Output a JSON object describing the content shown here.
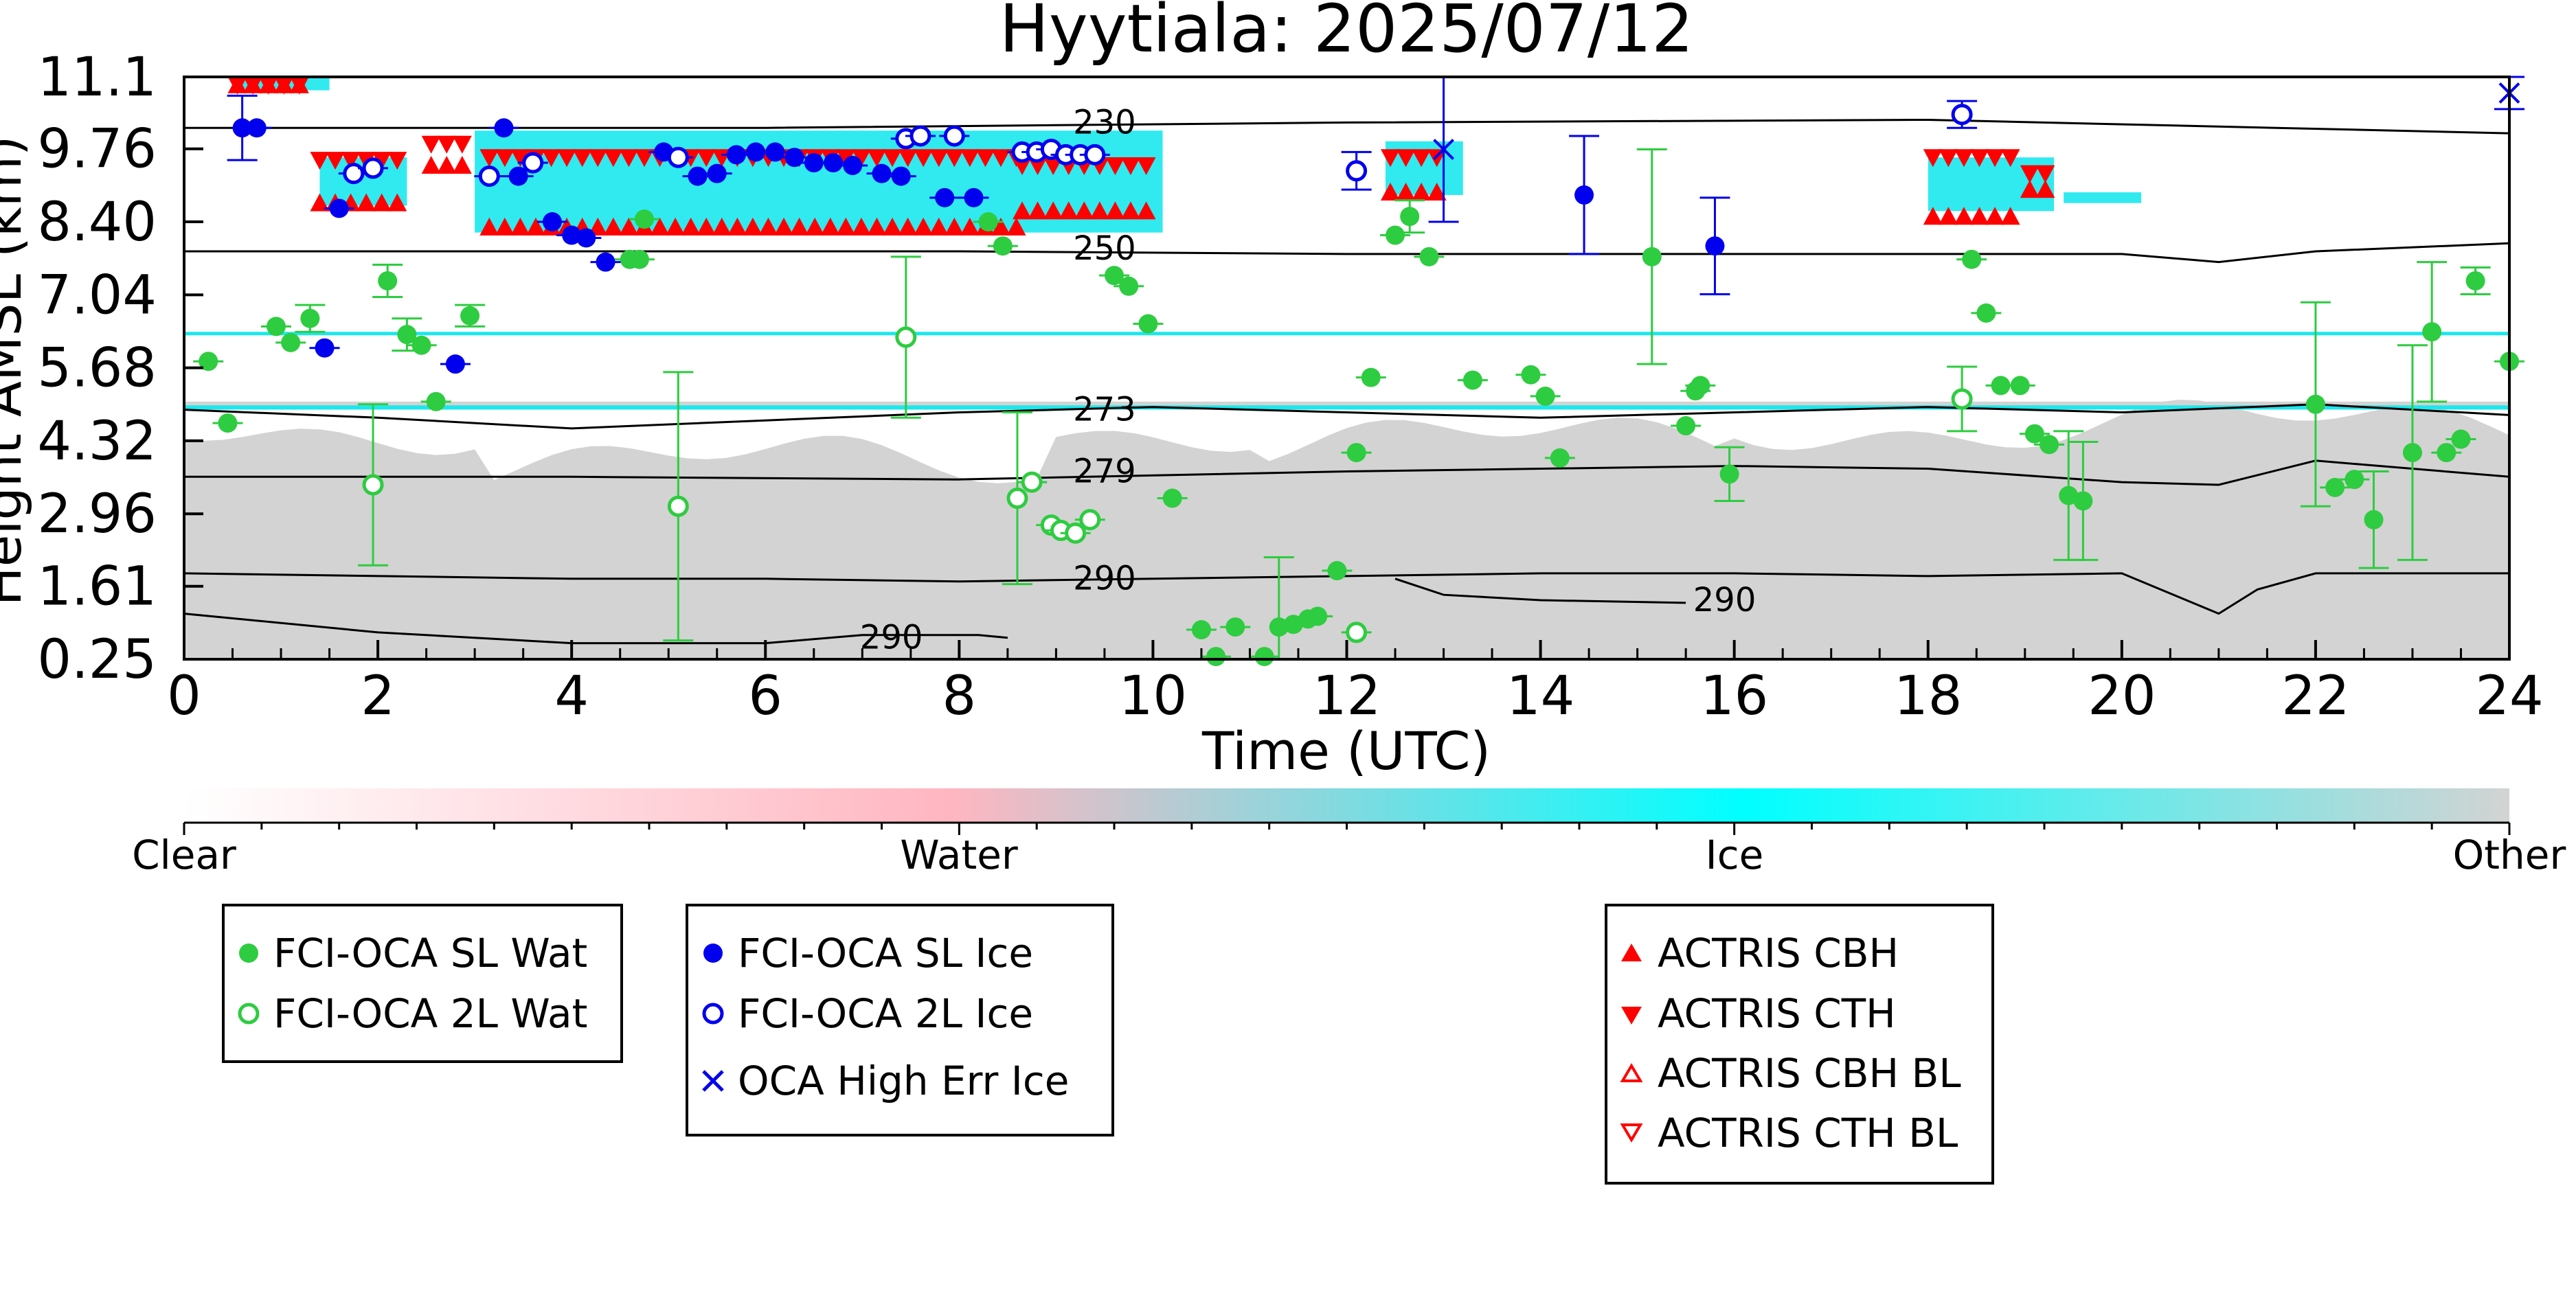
{
  "chart_data": {
    "type": "scatter",
    "title": "Hyytiala: 2025/07/12",
    "xlabel": "Time (UTC)",
    "ylabel": "Height AMSL (km)",
    "xlim": [
      0,
      24
    ],
    "ylim": [
      0.25,
      11.1
    ],
    "x_ticks": [
      "0",
      "2",
      "4",
      "6",
      "8",
      "10",
      "12",
      "14",
      "16",
      "18",
      "20",
      "22",
      "24"
    ],
    "y_ticks": [
      "0.25",
      "1.61",
      "2.96",
      "4.32",
      "5.68",
      "7.04",
      "8.40",
      "9.76",
      "11.1"
    ],
    "colorbar": {
      "labels": [
        "Clear",
        "Water",
        "Ice",
        "Other"
      ],
      "colors": [
        "#ffffff",
        "#ffb6c1",
        "#00ffff",
        "#d3d3d3"
      ]
    },
    "colors": {
      "sl_wat": "#2ecc40",
      "sl_ice": "#0000ee",
      "actris": "#ff0000",
      "contour": "#000000",
      "other_band": "#d3d3d3",
      "ice_band": "#1ae8ee"
    },
    "contours": [
      {
        "label": "230",
        "x": 9.5,
        "y": 10.2,
        "points": [
          [
            0,
            10.15
          ],
          [
            6,
            10.15
          ],
          [
            12,
            10.25
          ],
          [
            18,
            10.3
          ],
          [
            24,
            10.05
          ]
        ]
      },
      {
        "label": "250",
        "x": 9.5,
        "y": 7.85,
        "points": [
          [
            0,
            7.85
          ],
          [
            8,
            7.85
          ],
          [
            12,
            7.8
          ],
          [
            16,
            7.8
          ],
          [
            20,
            7.8
          ],
          [
            21,
            7.65
          ],
          [
            22,
            7.85
          ],
          [
            24,
            8.0
          ]
        ]
      },
      {
        "label": "273",
        "x": 9.5,
        "y": 4.85,
        "points": [
          [
            0,
            4.9
          ],
          [
            2,
            4.75
          ],
          [
            4,
            4.55
          ],
          [
            6,
            4.7
          ],
          [
            8,
            4.85
          ],
          [
            10,
            4.95
          ],
          [
            12,
            4.85
          ],
          [
            14,
            4.75
          ],
          [
            16,
            4.85
          ],
          [
            18,
            4.95
          ],
          [
            20,
            4.85
          ],
          [
            22,
            5.0
          ],
          [
            24,
            4.8
          ]
        ]
      },
      {
        "label": "279",
        "x": 9.5,
        "y": 3.7,
        "points": [
          [
            0,
            3.65
          ],
          [
            4,
            3.65
          ],
          [
            8,
            3.6
          ],
          [
            12,
            3.75
          ],
          [
            16,
            3.85
          ],
          [
            18,
            3.8
          ],
          [
            20,
            3.55
          ],
          [
            21,
            3.5
          ],
          [
            22,
            3.95
          ],
          [
            24,
            3.65
          ]
        ]
      },
      {
        "label": "290",
        "x": 9.5,
        "y": 1.7,
        "points": [
          [
            0,
            1.85
          ],
          [
            4,
            1.75
          ],
          [
            6,
            1.75
          ],
          [
            8,
            1.7
          ],
          [
            10,
            1.75
          ],
          [
            12,
            1.8
          ],
          [
            14,
            1.85
          ],
          [
            16,
            1.85
          ],
          [
            18,
            1.8
          ],
          [
            20,
            1.85
          ],
          [
            20.6,
            1.4
          ],
          [
            21,
            1.1
          ],
          [
            21.4,
            1.55
          ],
          [
            22,
            1.85
          ],
          [
            24,
            1.85
          ]
        ]
      },
      {
        "label": "290",
        "x": 15.9,
        "y": 1.3,
        "points": [
          [
            12.5,
            1.75
          ],
          [
            13,
            1.45
          ],
          [
            14,
            1.35
          ],
          [
            15.5,
            1.3
          ]
        ]
      },
      {
        "label": "290",
        "x": 7.3,
        "y": 0.6,
        "points": [
          [
            0,
            1.1
          ],
          [
            2,
            0.75
          ],
          [
            4,
            0.55
          ],
          [
            6,
            0.55
          ],
          [
            7,
            0.7
          ],
          [
            8.2,
            0.7
          ],
          [
            8.5,
            0.65
          ]
        ]
      }
    ],
    "series": [
      {
        "name": "FCI-OCA SL Wat",
        "marker": "circle-filled",
        "color": "#2ecc40",
        "points": [
          [
            0.25,
            5.8,
            0
          ],
          [
            0.45,
            4.65,
            0
          ],
          [
            0.95,
            6.45,
            0
          ],
          [
            1.1,
            6.15,
            0
          ],
          [
            1.3,
            6.6,
            0.25
          ],
          [
            2.1,
            7.3,
            0.3
          ],
          [
            2.3,
            6.3,
            0.3
          ],
          [
            2.45,
            6.1,
            0
          ],
          [
            2.6,
            5.05,
            0
          ],
          [
            2.95,
            6.65,
            0.2
          ],
          [
            4.6,
            7.7,
            0
          ],
          [
            4.7,
            7.7,
            0
          ],
          [
            4.75,
            8.45,
            0
          ],
          [
            8.3,
            8.4,
            0
          ],
          [
            8.45,
            7.95,
            0
          ],
          [
            9.6,
            7.4,
            0
          ],
          [
            9.75,
            7.2,
            0
          ],
          [
            9.95,
            6.5,
            0
          ],
          [
            10.2,
            3.25,
            0
          ],
          [
            10.5,
            0.8,
            0
          ],
          [
            10.65,
            0.3,
            0
          ],
          [
            10.85,
            0.85,
            0
          ],
          [
            11.15,
            0.3,
            0
          ],
          [
            11.3,
            0.85,
            1.3
          ],
          [
            11.45,
            0.9,
            0
          ],
          [
            11.6,
            1.0,
            0
          ],
          [
            11.7,
            1.05,
            0
          ],
          [
            11.9,
            1.9,
            0
          ],
          [
            12.1,
            4.1,
            0
          ],
          [
            12.25,
            5.5,
            0
          ],
          [
            12.5,
            8.15,
            0
          ],
          [
            12.65,
            8.5,
            0.3
          ],
          [
            12.85,
            7.75,
            0
          ],
          [
            13.3,
            5.45,
            0
          ],
          [
            13.9,
            5.55,
            0
          ],
          [
            14.05,
            5.15,
            0
          ],
          [
            14.2,
            4.0,
            0
          ],
          [
            15.15,
            7.75,
            2.0
          ],
          [
            15.5,
            4.6,
            0
          ],
          [
            15.65,
            5.35,
            0
          ],
          [
            15.6,
            5.25,
            0
          ],
          [
            15.95,
            3.7,
            0.5
          ],
          [
            18.45,
            7.7,
            0
          ],
          [
            18.6,
            6.7,
            0
          ],
          [
            18.75,
            5.35,
            0
          ],
          [
            18.95,
            5.35,
            0
          ],
          [
            19.1,
            4.45,
            0
          ],
          [
            19.25,
            4.25,
            0
          ],
          [
            19.45,
            3.3,
            1.2
          ],
          [
            19.6,
            3.2,
            1.1
          ],
          [
            22.0,
            5.0,
            1.9
          ],
          [
            22.2,
            3.45,
            0
          ],
          [
            22.4,
            3.6,
            0
          ],
          [
            22.6,
            2.85,
            0.9
          ],
          [
            23.0,
            4.1,
            2.0
          ],
          [
            23.2,
            6.35,
            1.3
          ],
          [
            23.35,
            4.1,
            0
          ],
          [
            23.5,
            4.35,
            0
          ],
          [
            23.65,
            7.3,
            0.25
          ],
          [
            24.0,
            5.8,
            0
          ]
        ]
      },
      {
        "name": "FCI-OCA 2L Wat",
        "marker": "circle-open",
        "color": "#2ecc40",
        "points": [
          [
            1.95,
            3.5,
            1.5
          ],
          [
            5.1,
            3.1,
            2.5
          ],
          [
            7.45,
            6.25,
            1.5
          ],
          [
            8.6,
            3.25,
            1.6
          ],
          [
            8.75,
            3.55,
            0
          ],
          [
            8.95,
            2.75,
            0
          ],
          [
            9.05,
            2.65,
            0
          ],
          [
            9.2,
            2.6,
            0
          ],
          [
            9.35,
            2.85,
            0
          ],
          [
            12.1,
            0.75,
            0
          ],
          [
            18.35,
            5.1,
            0.6
          ]
        ]
      },
      {
        "name": "FCI-OCA SL Ice",
        "marker": "circle-filled",
        "color": "#0000ee",
        "points": [
          [
            0.6,
            10.15,
            0.6
          ],
          [
            0.75,
            10.15,
            0
          ],
          [
            1.45,
            6.05,
            0
          ],
          [
            1.6,
            8.65,
            0
          ],
          [
            2.8,
            5.75,
            0
          ],
          [
            3.3,
            10.15,
            0
          ],
          [
            3.45,
            9.25,
            0
          ],
          [
            3.8,
            8.4,
            0
          ],
          [
            4.0,
            8.15,
            0
          ],
          [
            4.15,
            8.1,
            0
          ],
          [
            4.35,
            7.65,
            0
          ],
          [
            4.95,
            9.7,
            0
          ],
          [
            5.3,
            9.25,
            0
          ],
          [
            5.5,
            9.3,
            0
          ],
          [
            5.7,
            9.65,
            0
          ],
          [
            5.9,
            9.7,
            0
          ],
          [
            6.1,
            9.7,
            0
          ],
          [
            6.3,
            9.6,
            0
          ],
          [
            6.5,
            9.5,
            0
          ],
          [
            6.7,
            9.5,
            0
          ],
          [
            6.9,
            9.45,
            0
          ],
          [
            7.2,
            9.3,
            0
          ],
          [
            7.4,
            9.25,
            0
          ],
          [
            7.85,
            8.85,
            0
          ],
          [
            8.15,
            8.85,
            0
          ],
          [
            14.45,
            8.9,
            1.1
          ],
          [
            15.8,
            7.95,
            0.9
          ]
        ]
      },
      {
        "name": "FCI-OCA 2L Ice",
        "marker": "circle-open",
        "color": "#0000ee",
        "points": [
          [
            1.75,
            9.3,
            0
          ],
          [
            1.95,
            9.4,
            0
          ],
          [
            3.15,
            9.25,
            0
          ],
          [
            3.6,
            9.5,
            0
          ],
          [
            5.1,
            9.6,
            0
          ],
          [
            7.45,
            9.95,
            0
          ],
          [
            7.6,
            10.0,
            0
          ],
          [
            7.95,
            10.0,
            0
          ],
          [
            8.65,
            9.7,
            0
          ],
          [
            8.8,
            9.7,
            0
          ],
          [
            8.95,
            9.75,
            0
          ],
          [
            9.1,
            9.65,
            0
          ],
          [
            9.25,
            9.65,
            0
          ],
          [
            9.4,
            9.65,
            0
          ],
          [
            12.1,
            9.35,
            0.35
          ],
          [
            18.35,
            10.4,
            0.25
          ]
        ]
      },
      {
        "name": "OCA High Err Ice",
        "marker": "x",
        "color": "#0000ee",
        "points": [
          [
            13.0,
            9.75,
            1.35
          ],
          [
            24.0,
            10.8,
            0.3
          ]
        ]
      },
      {
        "name": "ACTRIS CBH",
        "marker": "triangle-up",
        "color": "#ff0000",
        "points": []
      },
      {
        "name": "ACTRIS CTH",
        "marker": "triangle-down",
        "color": "#ff0000",
        "points": []
      },
      {
        "name": "ACTRIS CBH BL",
        "marker": "triangle-up-open",
        "color": "#ff0000",
        "points": []
      },
      {
        "name": "ACTRIS CTH BL",
        "marker": "triangle-down-open",
        "color": "#ff0000",
        "points": []
      }
    ],
    "actris_segments": [
      {
        "x0": 0.55,
        "x1": 1.3,
        "top": 10.95,
        "base": 10.95
      },
      {
        "x0": 1.4,
        "x1": 2.2,
        "top": 9.55,
        "base": 8.75
      },
      {
        "x0": 2.55,
        "x1": 3.0,
        "top": 9.85,
        "base": 9.45
      },
      {
        "x0": 3.15,
        "x1": 8.6,
        "top": 9.6,
        "base": 8.3
      },
      {
        "x0": 8.65,
        "x1": 10.05,
        "top": 9.45,
        "base": 8.6
      },
      {
        "x0": 12.45,
        "x1": 12.95,
        "top": 9.6,
        "base": 8.95
      },
      {
        "x0": 18.05,
        "x1": 18.85,
        "top": 9.6,
        "base": 8.5
      },
      {
        "x0": 19.05,
        "x1": 19.25,
        "top": 9.3,
        "base": 9.0
      }
    ],
    "legend": {
      "box1": [
        "FCI-OCA SL Wat",
        "FCI-OCA 2L Wat"
      ],
      "box2": [
        "FCI-OCA SL Ice",
        "FCI-OCA 2L Ice",
        "OCA High Err Ice"
      ],
      "box3": [
        "ACTRIS CBH",
        "ACTRIS CTH",
        "ACTRIS CBH BL",
        "ACTRIS CTH BL"
      ]
    }
  }
}
